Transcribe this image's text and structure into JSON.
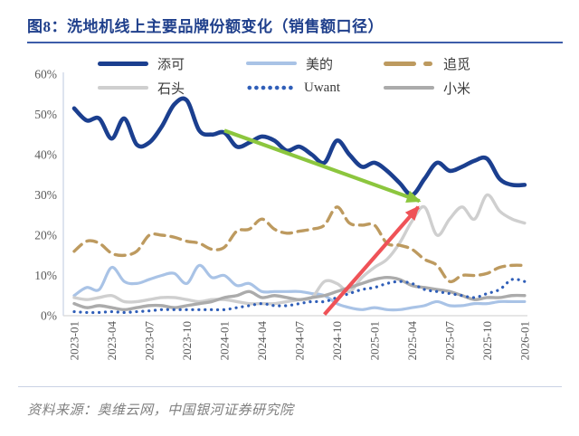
{
  "figure": {
    "title": "图8：洗地机线上主要品牌份额变化（销售额口径）",
    "source": "资料来源：奥维云网，中国银河证券研究院"
  },
  "chart_data": {
    "type": "line",
    "title": "洗地机线上主要品牌份额变化（销售额口径）",
    "xlabel": "",
    "ylabel": "",
    "ylim": [
      0,
      60
    ],
    "grid": false,
    "legend_position": "top",
    "y_tick_labels": [
      "0%",
      "10%",
      "20%",
      "30%",
      "40%",
      "50%",
      "60%"
    ],
    "x_tick_labels": [
      "2023-01",
      "2023-04",
      "2023-07",
      "2023-10",
      "2024-01",
      "2024-04",
      "2024-07",
      "2024-10",
      "2025-01",
      "2025-04",
      "2025-07",
      "2025-10",
      "2026-01"
    ],
    "x": [
      "2023-01",
      "2023-02",
      "2023-03",
      "2023-04",
      "2023-05",
      "2023-06",
      "2023-07",
      "2023-08",
      "2023-09",
      "2023-10",
      "2023-11",
      "2023-12",
      "2024-01",
      "2024-02",
      "2024-03",
      "2024-04",
      "2024-05",
      "2024-06",
      "2024-07",
      "2024-08",
      "2024-09",
      "2024-10",
      "2024-11",
      "2024-12",
      "2025-01",
      "2025-02",
      "2025-03",
      "2025-04",
      "2025-05",
      "2025-06",
      "2025-07",
      "2025-08",
      "2025-09",
      "2025-10",
      "2025-11",
      "2025-12",
      "2026-01"
    ],
    "unit": "percent",
    "series": [
      {
        "key": "tineco",
        "name": "添可",
        "color": "#1B3F8F",
        "style": "solid-thick",
        "values": [
          51.5,
          48.5,
          49,
          44,
          49,
          42.5,
          43,
          47,
          52.5,
          53.5,
          46,
          45,
          45.5,
          42,
          43,
          44.5,
          43.5,
          41,
          42,
          40,
          38,
          43.5,
          40,
          37,
          38,
          36,
          33,
          30,
          34,
          38,
          36,
          37,
          38.5,
          39,
          34,
          32.5,
          32.5
        ]
      },
      {
        "key": "midea",
        "name": "美的",
        "color": "#A9C3E6",
        "style": "solid",
        "values": [
          5,
          7,
          6.5,
          12,
          8.5,
          8,
          9,
          10,
          10.5,
          8,
          12.5,
          9.5,
          10,
          7.5,
          8,
          6,
          6,
          6,
          6,
          5.5,
          5,
          3,
          2,
          1.5,
          2,
          1.5,
          1.5,
          2,
          2.5,
          3.5,
          2.5,
          2.5,
          3,
          3,
          3.5,
          3.5,
          3.5
        ]
      },
      {
        "key": "dreame",
        "name": "追觅",
        "color": "#BD9A5F",
        "style": "dashed",
        "values": [
          16,
          18.5,
          18,
          15.5,
          15,
          16,
          20,
          20,
          19.5,
          18.5,
          18,
          16.5,
          17,
          21,
          21.5,
          24,
          21.5,
          20.5,
          21,
          21.5,
          22.5,
          27,
          23,
          22.5,
          22.5,
          18,
          17.5,
          16.5,
          14,
          12.5,
          8.5,
          10,
          10,
          10.5,
          12,
          12.5,
          12.5
        ]
      },
      {
        "key": "roborock",
        "name": "石头",
        "color": "#CFCFCF",
        "style": "solid",
        "values": [
          4.5,
          4,
          4.5,
          5,
          3.5,
          3.5,
          4,
          4.5,
          4.5,
          4,
          3.5,
          4,
          4,
          3.5,
          3,
          3,
          3,
          3.5,
          4,
          4.5,
          8.5,
          8,
          6,
          9.5,
          12,
          14,
          18,
          23.5,
          27,
          20,
          24,
          27,
          24,
          30,
          26,
          24,
          23
        ]
      },
      {
        "key": "uwant",
        "name": "Uwant",
        "color": "#2F5EB8",
        "style": "dotted",
        "values": [
          1,
          0.8,
          0.8,
          1,
          0.8,
          1,
          1.2,
          1.5,
          1.5,
          1.5,
          1.5,
          1.5,
          1.5,
          2,
          2.5,
          3,
          2.5,
          2.5,
          3,
          3.5,
          3.5,
          4.5,
          5.5,
          6.5,
          7,
          8,
          8.5,
          8,
          6.5,
          6,
          5.5,
          5,
          4.5,
          5.5,
          6.5,
          9,
          8.5
        ]
      },
      {
        "key": "xiaomi",
        "name": "小米",
        "color": "#ABABAB",
        "style": "solid",
        "values": [
          3,
          2,
          2.5,
          2,
          1.5,
          2,
          2.5,
          2.5,
          2,
          2.5,
          3,
          3.5,
          4.5,
          5,
          6,
          4.5,
          5,
          4.5,
          4,
          4.5,
          5,
          6,
          7,
          8,
          9,
          9.5,
          9,
          7.5,
          7,
          6.5,
          6,
          5,
          4,
          4.5,
          4.5,
          5,
          5
        ]
      }
    ],
    "annotations": [
      {
        "type": "arrow",
        "name": "tineco-decline-arrow",
        "color": "#8CC63E",
        "from_index": 12,
        "from_value": 46,
        "to_index": 27.6,
        "to_value": 28.5
      },
      {
        "type": "arrow",
        "name": "roborock-rise-arrow",
        "color": "#EF5257",
        "from_index": 20,
        "from_value": 0.3,
        "to_index": 27.5,
        "to_value": 27
      }
    ]
  }
}
